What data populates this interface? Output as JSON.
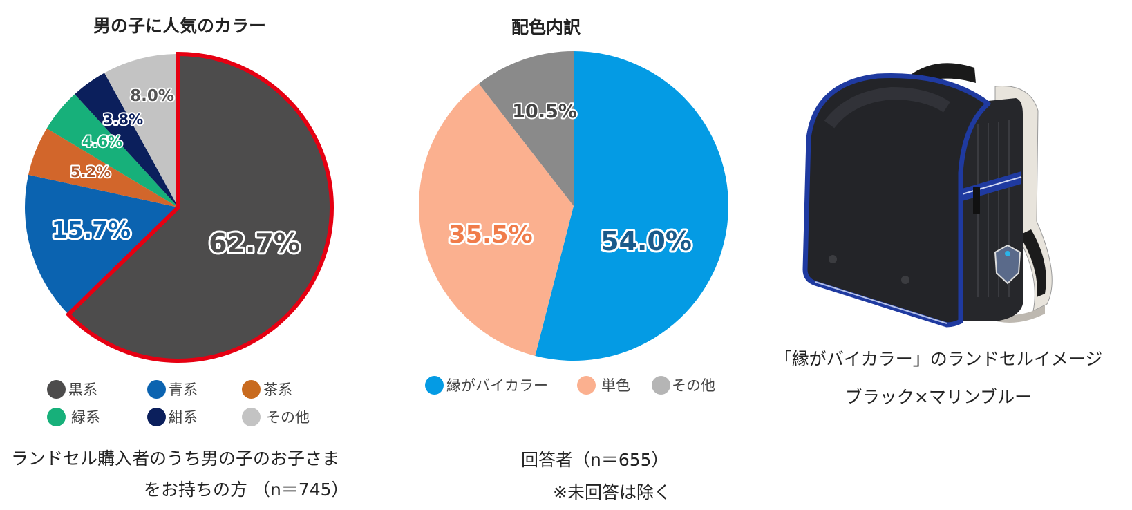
{
  "chart_data": [
    {
      "type": "pie",
      "title": "男の子に人気のカラー",
      "categories": [
        "黒系",
        "青系",
        "茶系",
        "緑系",
        "紺系",
        "その他"
      ],
      "values": [
        62.7,
        15.7,
        5.2,
        4.6,
        3.8,
        8.0
      ],
      "value_labels": [
        "62.7%",
        "15.7%",
        "5.2%",
        "4.6%",
        "3.8%",
        "8.0%"
      ],
      "colors": [
        "#4d4c4c",
        "#0b63b0",
        "#d2662b",
        "#17b07a",
        "#0b1f5c",
        "#c3c3c3"
      ],
      "label_colors": [
        "#4d4c4c",
        "#0b63b0",
        "#b0562a",
        "#17b07a",
        "#0b1f5c",
        "#555555"
      ],
      "highlight": {
        "slice": 0,
        "outline_color": "#e60012"
      },
      "start_angle": "12 o'clock, clockwise",
      "legend_position": "bottom",
      "note_lines": [
        "ランドセル購入者のうち男の子のお子さま",
        "をお持ちの方 （n＝745）"
      ]
    },
    {
      "type": "pie",
      "title": "配色内訳",
      "categories": [
        "縁がバイカラー",
        "単色",
        "その他"
      ],
      "values": [
        54.0,
        35.5,
        10.5
      ],
      "value_labels": [
        "54.0%",
        "35.5%",
        "10.5%"
      ],
      "colors": [
        "#049be4",
        "#fbb08f",
        "#8a8a8a"
      ],
      "label_colors": [
        "#1a5a8a",
        "#f07c4a",
        "#444444"
      ],
      "start_angle": "12 o'clock, clockwise",
      "legend_position": "bottom",
      "note_lines": [
        "回答者（n＝655）",
        "※未回答は除く"
      ]
    }
  ],
  "left_chart": {
    "title": "男の子に人気のカラー",
    "legend": [
      {
        "label": "黒系",
        "color": "#4d4c4c"
      },
      {
        "label": "青系",
        "color": "#0b63b0"
      },
      {
        "label": "茶系",
        "color": "#c86a1e"
      },
      {
        "label": "緑系",
        "color": "#17b07a"
      },
      {
        "label": "紺系",
        "color": "#0b1f5c"
      },
      {
        "label": "その他",
        "color": "#c3c3c3"
      }
    ],
    "note_line1": "ランドセル購入者のうち男の子のお子さま",
    "note_line2": "をお持ちの方 （n＝745）"
  },
  "middle_chart": {
    "title": "配色内訳",
    "legend": [
      {
        "label": "縁がバイカラー",
        "color": "#049be4"
      },
      {
        "label": "単色",
        "color": "#fbb08f"
      },
      {
        "label": "その他",
        "color": "#b5b5b5"
      }
    ],
    "note_line1": "回答者（n＝655）",
    "note_line2": "※未回答は除く"
  },
  "product": {
    "image_alt": "ランドセル ブラック×マリンブルー",
    "caption_line1": "「縁がバイカラー」のランドセルイメージ",
    "caption_line2": "ブラック×マリンブルー",
    "body_color": "#1e1f22",
    "trim_color": "#1f3aa0"
  }
}
